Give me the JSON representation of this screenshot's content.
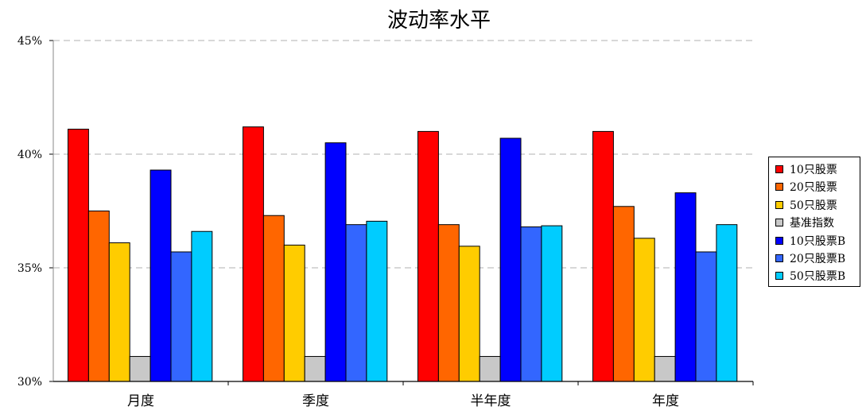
{
  "chart_data": {
    "type": "bar",
    "title": "波动率水平",
    "categories": [
      "月度",
      "季度",
      "半年度",
      "年度"
    ],
    "ylim": [
      30,
      45
    ],
    "yticks": [
      "30%",
      "35%",
      "40%",
      "45%"
    ],
    "grid": true,
    "legend_position": "right",
    "series": [
      {
        "name": "10只股票",
        "color": "#FF0000",
        "values": [
          41.1,
          41.2,
          41.0,
          41.0
        ]
      },
      {
        "name": "20只股票",
        "color": "#FF6600",
        "values": [
          37.5,
          37.3,
          36.9,
          37.7
        ]
      },
      {
        "name": "50只股票",
        "color": "#FFCC00",
        "values": [
          36.1,
          36.0,
          35.95,
          36.3
        ]
      },
      {
        "name": "基准指数",
        "color": "#C8C8C8",
        "values": [
          31.1,
          31.1,
          31.1,
          31.1
        ]
      },
      {
        "name": "10只股票B",
        "color": "#0000FF",
        "values": [
          39.3,
          40.5,
          40.7,
          38.3
        ]
      },
      {
        "name": "20只股票B",
        "color": "#3366FF",
        "values": [
          35.7,
          36.9,
          36.8,
          35.7
        ]
      },
      {
        "name": "50只股票B",
        "color": "#00CCFF",
        "values": [
          36.6,
          37.05,
          36.85,
          36.9
        ]
      }
    ]
  }
}
